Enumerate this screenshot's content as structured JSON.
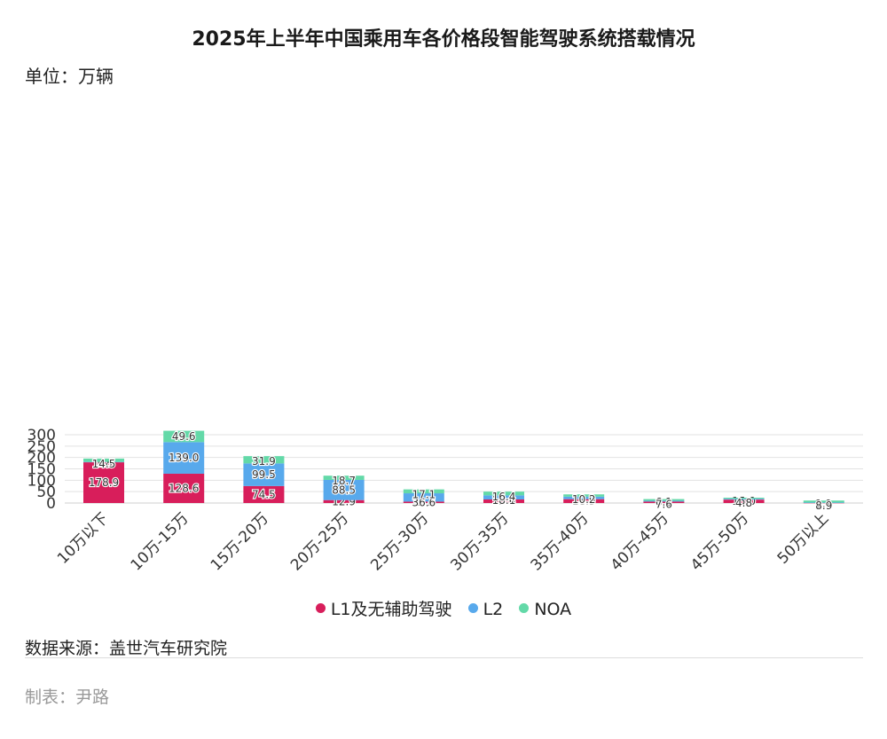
{
  "title": "2025年上半年中国乘用车各价格段智能驾驶系统搭载情况",
  "unit": "单位：万辆",
  "source": "数据来源：盖世汽车研究院",
  "maker": "制表：尹路",
  "colors": {
    "L1": "#d81e5b",
    "L2": "#58a9ec",
    "NOA": "#63d9a8",
    "grid": "#e2e2e2"
  },
  "chart_data": {
    "type": "bar",
    "stacked": true,
    "title": "2025年上半年中国乘用车各价格段智能驾驶系统搭载情况",
    "ylabel": "单位：万辆",
    "ylim": [
      0,
      320
    ],
    "yticks": [
      0,
      50,
      100,
      150,
      200,
      250,
      300
    ],
    "grid": true,
    "legend_position": "bottom",
    "categories": [
      "10万以下",
      "10万-15万",
      "15万-20万",
      "20万-25万",
      "25万-30万",
      "30万-35万",
      "35万-40万",
      "40万-45万",
      "45万-50万",
      "50万以上"
    ],
    "series": [
      {
        "name": "L1及无辅助驾驶",
        "key": "L1",
        "values": [
          178.9,
          128.6,
          74.5,
          12.9,
          6.1,
          15.6,
          16.9,
          6.1,
          15.0,
          0.9
        ],
        "labels": [
          "178.9",
          "128.6",
          "74.5",
          "12.9",
          "6.1",
          "15.6",
          "16.9",
          "6.1",
          "15.0",
          ""
        ]
      },
      {
        "name": "L2",
        "key": "L2",
        "values": [
          1.8,
          139.0,
          99.5,
          88.5,
          36.6,
          18.1,
          10.9,
          3.5,
          3.5,
          1.1
        ],
        "labels": [
          "1.8",
          "139.0",
          "99.5",
          "88.5",
          "36.6",
          "18.1",
          "10.9",
          "",
          "",
          "1.1"
        ]
      },
      {
        "name": "NOA",
        "key": "NOA",
        "values": [
          14.5,
          49.6,
          31.9,
          18.7,
          17.1,
          16.4,
          10.2,
          7.6,
          4.8,
          8.9
        ],
        "labels": [
          "14.5",
          "49.6",
          "31.9",
          "18.7",
          "17.1",
          "16.4",
          "10.2",
          "7.6",
          "4.8",
          "8.9"
        ]
      }
    ]
  }
}
